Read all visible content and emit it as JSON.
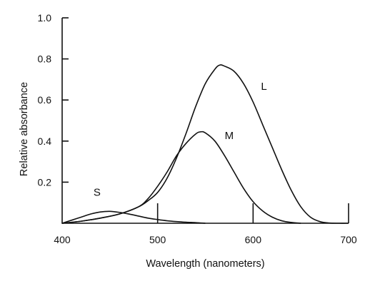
{
  "chart_data": {
    "type": "line",
    "title": "",
    "xlabel": "Wavelength (nanometers)",
    "ylabel": "Relative absorbance",
    "xlim": [
      400,
      700
    ],
    "ylim": [
      0,
      1.0
    ],
    "x_ticks": [
      400,
      500,
      600,
      700
    ],
    "x_tick_labels": [
      "400",
      "500",
      "600",
      "700"
    ],
    "y_ticks": [
      0.2,
      0.4,
      0.6,
      0.8,
      1.0
    ],
    "y_tick_labels": [
      "0.2",
      "0.4",
      "0.6",
      "0.8",
      "1.0"
    ],
    "grid": false,
    "legend": "none",
    "series": [
      {
        "name": "S",
        "x": [
          400,
          410,
          420,
          430,
          440,
          450,
          460,
          470,
          480,
          490,
          500,
          510,
          520,
          530,
          540,
          550
        ],
        "y": [
          0.0,
          0.015,
          0.03,
          0.045,
          0.055,
          0.058,
          0.053,
          0.045,
          0.035,
          0.025,
          0.018,
          0.012,
          0.008,
          0.005,
          0.003,
          0.0
        ]
      },
      {
        "name": "M",
        "x": [
          400,
          420,
          440,
          460,
          480,
          490,
          500,
          510,
          520,
          530,
          540,
          545,
          550,
          560,
          570,
          580,
          590,
          600,
          610,
          620,
          630,
          640,
          650
        ],
        "y": [
          0.0,
          0.01,
          0.025,
          0.045,
          0.08,
          0.12,
          0.18,
          0.25,
          0.33,
          0.39,
          0.435,
          0.445,
          0.44,
          0.4,
          0.33,
          0.25,
          0.17,
          0.105,
          0.06,
          0.03,
          0.012,
          0.004,
          0.0
        ]
      },
      {
        "name": "L",
        "x": [
          400,
          420,
          440,
          460,
          480,
          490,
          500,
          510,
          520,
          530,
          540,
          550,
          560,
          565,
          570,
          580,
          590,
          600,
          610,
          620,
          630,
          640,
          650,
          660,
          670,
          680,
          690,
          700
        ],
        "y": [
          0.0,
          0.01,
          0.025,
          0.045,
          0.08,
          0.11,
          0.15,
          0.22,
          0.32,
          0.44,
          0.57,
          0.68,
          0.75,
          0.77,
          0.765,
          0.74,
          0.68,
          0.59,
          0.48,
          0.37,
          0.26,
          0.16,
          0.08,
          0.03,
          0.008,
          0.001,
          0.0,
          0.0
        ]
      }
    ]
  }
}
